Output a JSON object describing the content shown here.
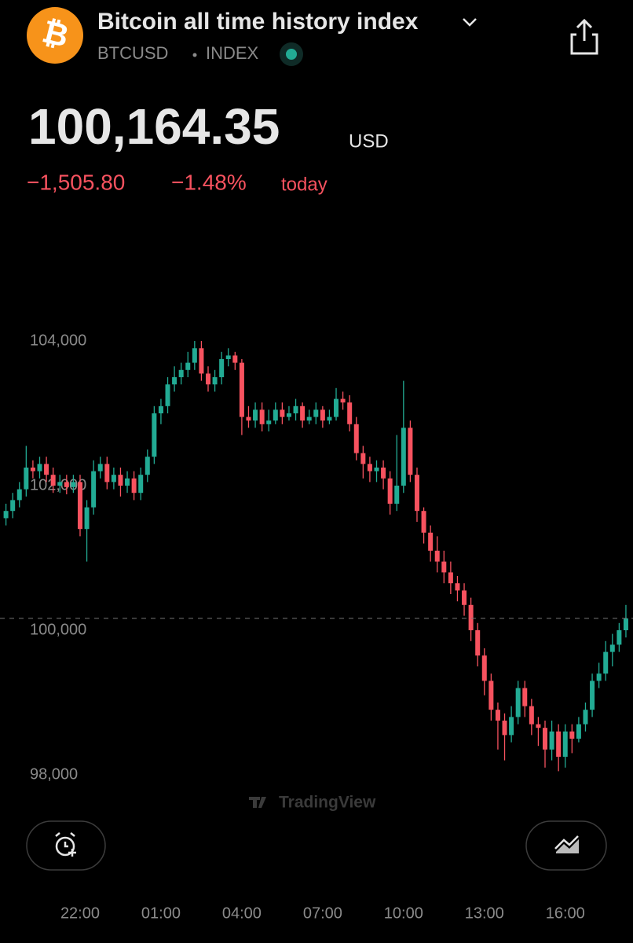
{
  "header": {
    "icon": "₿",
    "title": "Bitcoin all time history index",
    "symbol": "BTCUSD",
    "exchange": "INDEX",
    "price": "100,164.35",
    "currency": "USD",
    "change": "−1,505.80",
    "change_percent": "−1.48%",
    "period": "today",
    "watermark": "TradingView"
  },
  "chart_data": {
    "type": "candlestick",
    "up_color": "#22ab94",
    "down_color": "#f7525f",
    "grid": false,
    "x": [
      "19:15",
      "19:30",
      "19:45",
      "20:00",
      "20:15",
      "20:30",
      "20:45",
      "21:00",
      "21:15",
      "21:30",
      "21:45",
      "22:00",
      "22:15",
      "22:30",
      "22:45",
      "23:00",
      "23:15",
      "23:30",
      "23:45",
      "00:00",
      "00:15",
      "00:30",
      "00:45",
      "01:00",
      "01:15",
      "01:30",
      "01:45",
      "02:00",
      "02:15",
      "02:30",
      "02:45",
      "03:00",
      "03:15",
      "03:30",
      "03:45",
      "04:00",
      "04:15",
      "04:30",
      "04:45",
      "05:00",
      "05:15",
      "05:30",
      "05:45",
      "06:00",
      "06:15",
      "06:30",
      "06:45",
      "07:00",
      "07:15",
      "07:30",
      "07:45",
      "08:00",
      "08:15",
      "08:30",
      "08:45",
      "09:00",
      "09:15",
      "09:30",
      "09:45",
      "10:00",
      "10:15",
      "10:30",
      "10:45",
      "11:00",
      "11:15",
      "11:30",
      "11:45",
      "12:00",
      "12:15",
      "12:30",
      "12:45",
      "13:00",
      "13:15",
      "13:30",
      "13:45",
      "14:00",
      "14:15",
      "14:30",
      "14:45",
      "15:00",
      "15:15",
      "15:30",
      "15:45",
      "16:00",
      "16:15",
      "16:30",
      "16:45",
      "17:00",
      "17:15",
      "17:30",
      "17:45",
      "18:00",
      "18:15"
    ],
    "open": [
      101550,
      101650,
      101800,
      101950,
      102250,
      102200,
      102300,
      102150,
      102000,
      102050,
      101980,
      102050,
      101400,
      101700,
      102200,
      102300,
      102050,
      102150,
      102000,
      102100,
      101900,
      102150,
      102400,
      103000,
      103100,
      103400,
      103500,
      103600,
      103700,
      103900,
      103550,
      103400,
      103500,
      103750,
      103800,
      103700,
      102950,
      102900,
      103050,
      102850,
      102900,
      103050,
      102950,
      103000,
      103100,
      102900,
      102950,
      103050,
      102900,
      102950,
      103200,
      103150,
      102850,
      102450,
      102300,
      102200,
      102250,
      102100,
      101750,
      102000,
      102800,
      102150,
      101650,
      101350,
      101100,
      100950,
      100800,
      100650,
      100550,
      100350,
      100000,
      99650,
      99300,
      98900,
      98750,
      98550,
      98800,
      99200,
      98950,
      98700,
      98650,
      98350,
      98600,
      98250,
      98600,
      98500,
      98700,
      98900,
      99300,
      99400,
      99700,
      99800,
      100000
    ],
    "high": [
      101750,
      101900,
      102050,
      102550,
      102350,
      102400,
      102400,
      102250,
      102150,
      102150,
      102150,
      102150,
      101800,
      102350,
      102400,
      102400,
      102250,
      102250,
      102200,
      102200,
      102250,
      102500,
      103100,
      103200,
      103500,
      103650,
      103700,
      103850,
      104000,
      104000,
      103650,
      103600,
      103850,
      103900,
      103850,
      103750,
      103100,
      103150,
      103150,
      103050,
      103150,
      103150,
      103100,
      103200,
      103150,
      103050,
      103150,
      103100,
      103050,
      103350,
      103300,
      103250,
      102950,
      102550,
      102400,
      102350,
      102350,
      102200,
      102700,
      103450,
      102900,
      102250,
      101700,
      101450,
      101300,
      101100,
      100950,
      100750,
      100650,
      100450,
      100100,
      99750,
      99400,
      99000,
      98850,
      98950,
      99300,
      99300,
      99050,
      98800,
      98750,
      98750,
      98700,
      98700,
      98700,
      98800,
      99000,
      99400,
      99550,
      99850,
      99950,
      100100,
      100350
    ],
    "low": [
      101450,
      101550,
      101700,
      101850,
      102100,
      102100,
      102050,
      101900,
      101900,
      101880,
      101900,
      101300,
      100950,
      101600,
      102100,
      101950,
      101950,
      101850,
      101900,
      101800,
      101800,
      102050,
      102300,
      102850,
      103000,
      103300,
      103400,
      103500,
      103600,
      103450,
      103300,
      103300,
      103400,
      103650,
      103600,
      102700,
      102800,
      102800,
      102750,
      102750,
      102850,
      102850,
      102900,
      102900,
      102800,
      102850,
      102850,
      102800,
      102850,
      102900,
      103050,
      102750,
      102350,
      102100,
      102050,
      102050,
      101950,
      101600,
      101650,
      101900,
      102050,
      101500,
      101200,
      100950,
      100800,
      100650,
      100500,
      100400,
      100200,
      99850,
      99500,
      99100,
      98750,
      98350,
      98200,
      98450,
      98700,
      98800,
      98550,
      98400,
      98100,
      98200,
      98050,
      98100,
      98300,
      98450,
      98600,
      98800,
      99200,
      99300,
      99500,
      99700,
      99900
    ],
    "close": [
      101650,
      101800,
      101950,
      102250,
      102200,
      102300,
      102150,
      102000,
      102050,
      101980,
      102050,
      101400,
      101700,
      102200,
      102300,
      102050,
      102150,
      102000,
      102100,
      101900,
      102150,
      102400,
      103000,
      103100,
      103400,
      103500,
      103600,
      103700,
      103900,
      103550,
      103400,
      103500,
      103750,
      103800,
      103700,
      102950,
      102900,
      103050,
      102850,
      102900,
      103050,
      102950,
      103000,
      103100,
      102900,
      102950,
      103050,
      102900,
      102950,
      103200,
      103150,
      102850,
      102450,
      102300,
      102200,
      102250,
      102100,
      101750,
      102000,
      102800,
      102150,
      101650,
      101350,
      101100,
      100950,
      100800,
      100650,
      100550,
      100350,
      100000,
      99650,
      99300,
      98900,
      98750,
      98550,
      98800,
      99200,
      98950,
      98700,
      98650,
      98350,
      98600,
      98250,
      98600,
      98500,
      98700,
      98900,
      99300,
      99400,
      99700,
      99800,
      100000,
      100164.35
    ],
    "ylim": [
      97400,
      104600
    ],
    "yticks": [
      {
        "value": 98000,
        "label": "98,000"
      },
      {
        "value": 100000,
        "label": "100,000"
      },
      {
        "value": 102000,
        "label": "102,000"
      },
      {
        "value": 104000,
        "label": "104,000"
      }
    ],
    "xticks": [
      "22:00",
      "01:00",
      "04:00",
      "07:00",
      "10:00",
      "13:00",
      "16:00"
    ]
  }
}
